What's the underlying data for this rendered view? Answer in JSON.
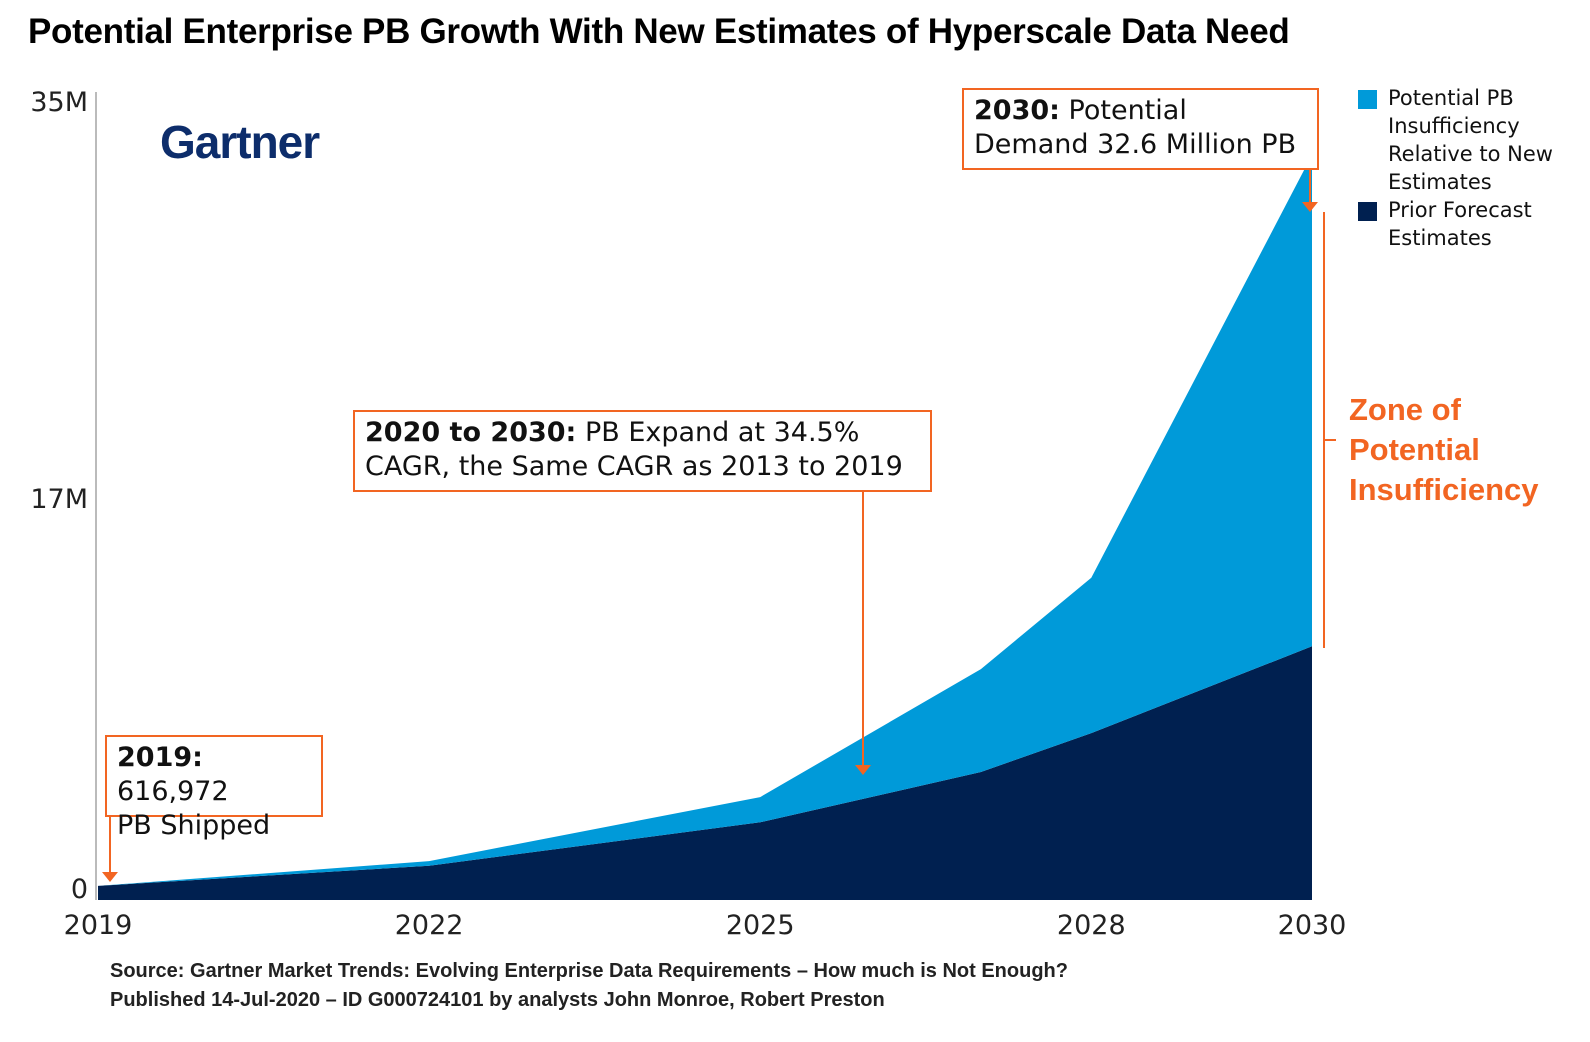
{
  "title": "Potential Enterprise PB Growth With New Estimates of Hyperscale Data Need",
  "logo_text": "Gartner",
  "chart_data": {
    "type": "area",
    "stacked": true,
    "x": [
      2019,
      2022,
      2025,
      2027,
      2028,
      2030
    ],
    "x_ticks": [
      "2019",
      "2022",
      "2025",
      "2028",
      "2030"
    ],
    "y_ticks": [
      "35M",
      "17M",
      "0"
    ],
    "ylim": [
      0,
      35000000
    ],
    "grid": false,
    "legend_position": "top-right",
    "series": [
      {
        "name": "Prior Forecast Estimates",
        "color": "#002050",
        "values": [
          616972,
          1500000,
          3400000,
          5600000,
          7300000,
          11100000
        ]
      },
      {
        "name": "Potential PB Insufficiency Relative to New Estimates",
        "color": "#009ad9",
        "values": [
          0,
          200000,
          1100000,
          4500000,
          6800000,
          21500000
        ]
      }
    ]
  },
  "annotations": {
    "a2019": {
      "bold": "2019:",
      "text1": " 616,972",
      "text2": "PB Shipped"
    },
    "mid": {
      "bold": "2020 to 2030:",
      "text1": " PB Expand at 34.5%",
      "text2": "CAGR, the Same CAGR as 2013 to 2019"
    },
    "a2030": {
      "bold": "2030:",
      "text1": " Potential",
      "text2": "Demand 32.6 Million PB"
    },
    "zone": [
      "Zone of",
      "Potential",
      "Insufficiency"
    ]
  },
  "accent_color": "#f26522",
  "source": {
    "line1": "Source: Gartner Market Trends: Evolving Enterprise Data Requirements – How much is Not Enough?",
    "line2": "Published 14-Jul-2020 – ID G000724101  by analysts John Monroe, Robert Preston"
  }
}
